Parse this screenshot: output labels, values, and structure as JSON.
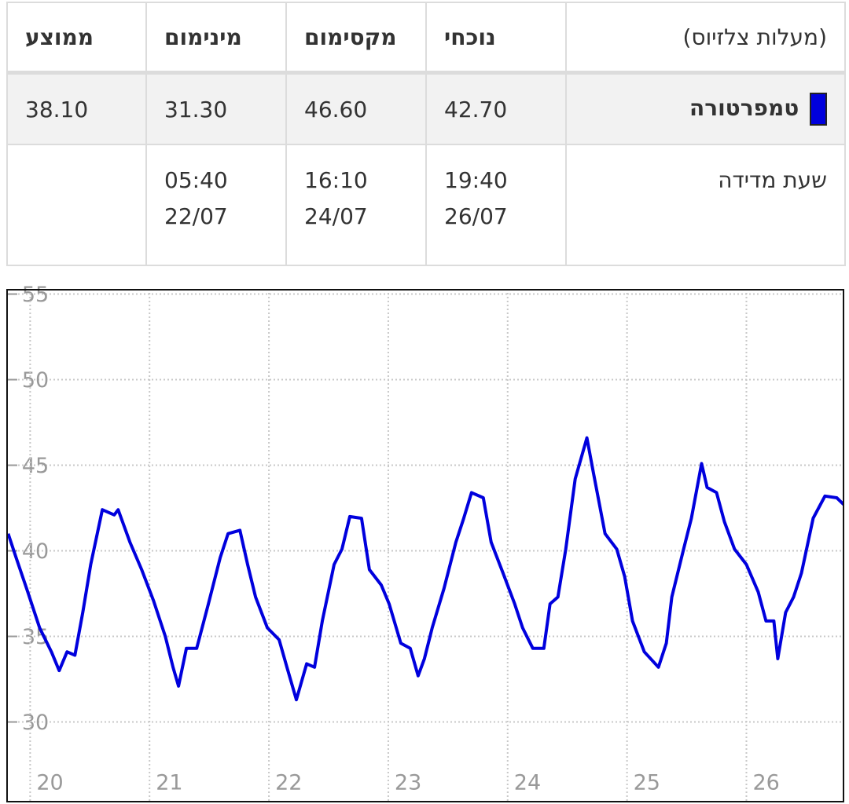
{
  "table": {
    "header": [
      "(מעלות צלזיוס)",
      "נוכחי",
      "מקסימום",
      "מינימום",
      "ממוצע"
    ],
    "rows": [
      [
        "טמפרטורה",
        "42.70",
        "46.60",
        "31.30",
        "38.10"
      ],
      [
        "שעת מדידה",
        [
          "19:40",
          "26/07"
        ],
        [
          "16:10",
          "24/07"
        ],
        [
          "05:40",
          "22/07"
        ]
      ]
    ]
  },
  "chart_data": {
    "type": "line",
    "color": "#0000dd",
    "x": [
      19.816,
      19.882,
      19.98,
      20.079,
      20.178,
      20.243,
      20.309,
      20.375,
      20.441,
      20.507,
      20.605,
      20.704,
      20.737,
      20.836,
      20.934,
      21.033,
      21.132,
      21.197,
      21.243,
      21.309,
      21.395,
      21.493,
      21.592,
      21.658,
      21.757,
      21.822,
      21.888,
      21.987,
      22.086,
      22.151,
      22.23,
      22.316,
      22.382,
      22.447,
      22.546,
      22.612,
      22.678,
      22.776,
      22.842,
      22.941,
      23.007,
      23.105,
      23.184,
      23.25,
      23.303,
      23.368,
      23.467,
      23.566,
      23.632,
      23.697,
      23.796,
      23.862,
      23.961,
      24.059,
      24.125,
      24.211,
      24.303,
      24.355,
      24.421,
      24.487,
      24.566,
      24.664,
      24.717,
      24.816,
      24.914,
      24.98,
      25.046,
      25.145,
      25.263,
      25.329,
      25.375,
      25.474,
      25.539,
      25.625,
      25.671,
      25.75,
      25.816,
      25.901,
      26.0,
      26.099,
      26.164,
      26.23,
      26.263,
      26.329,
      26.395,
      26.461,
      26.559,
      26.658,
      26.757,
      26.816
    ],
    "values": [
      41.0,
      39.6,
      37.6,
      35.5,
      34.1,
      33.0,
      34.1,
      33.9,
      36.4,
      39.2,
      42.4,
      42.1,
      42.4,
      40.5,
      38.9,
      37.1,
      35.0,
      33.2,
      32.1,
      34.3,
      34.3,
      36.9,
      39.6,
      41.0,
      41.2,
      39.2,
      37.3,
      35.5,
      34.8,
      33.2,
      31.3,
      33.4,
      33.2,
      35.9,
      39.2,
      40.1,
      42.0,
      41.9,
      38.9,
      38.0,
      36.9,
      34.6,
      34.3,
      32.7,
      33.7,
      35.5,
      37.8,
      40.5,
      41.9,
      43.4,
      43.1,
      40.5,
      38.7,
      36.9,
      35.5,
      34.3,
      34.3,
      36.9,
      37.3,
      40.1,
      44.2,
      46.6,
      44.6,
      41.0,
      40.1,
      38.5,
      35.9,
      34.1,
      33.2,
      34.6,
      37.3,
      40.1,
      41.9,
      45.1,
      43.7,
      43.4,
      41.7,
      40.1,
      39.2,
      37.6,
      35.9,
      35.9,
      33.7,
      36.4,
      37.3,
      38.7,
      41.9,
      43.2,
      43.1,
      42.7
    ],
    "xlim": [
      19.8,
      26.82
    ],
    "xticks": [
      20,
      21,
      22,
      23,
      24,
      25,
      26
    ],
    "ylim": [
      25.3,
      55.3
    ],
    "yticks": [
      30,
      35,
      40,
      45,
      50,
      55
    ],
    "grid": true
  }
}
